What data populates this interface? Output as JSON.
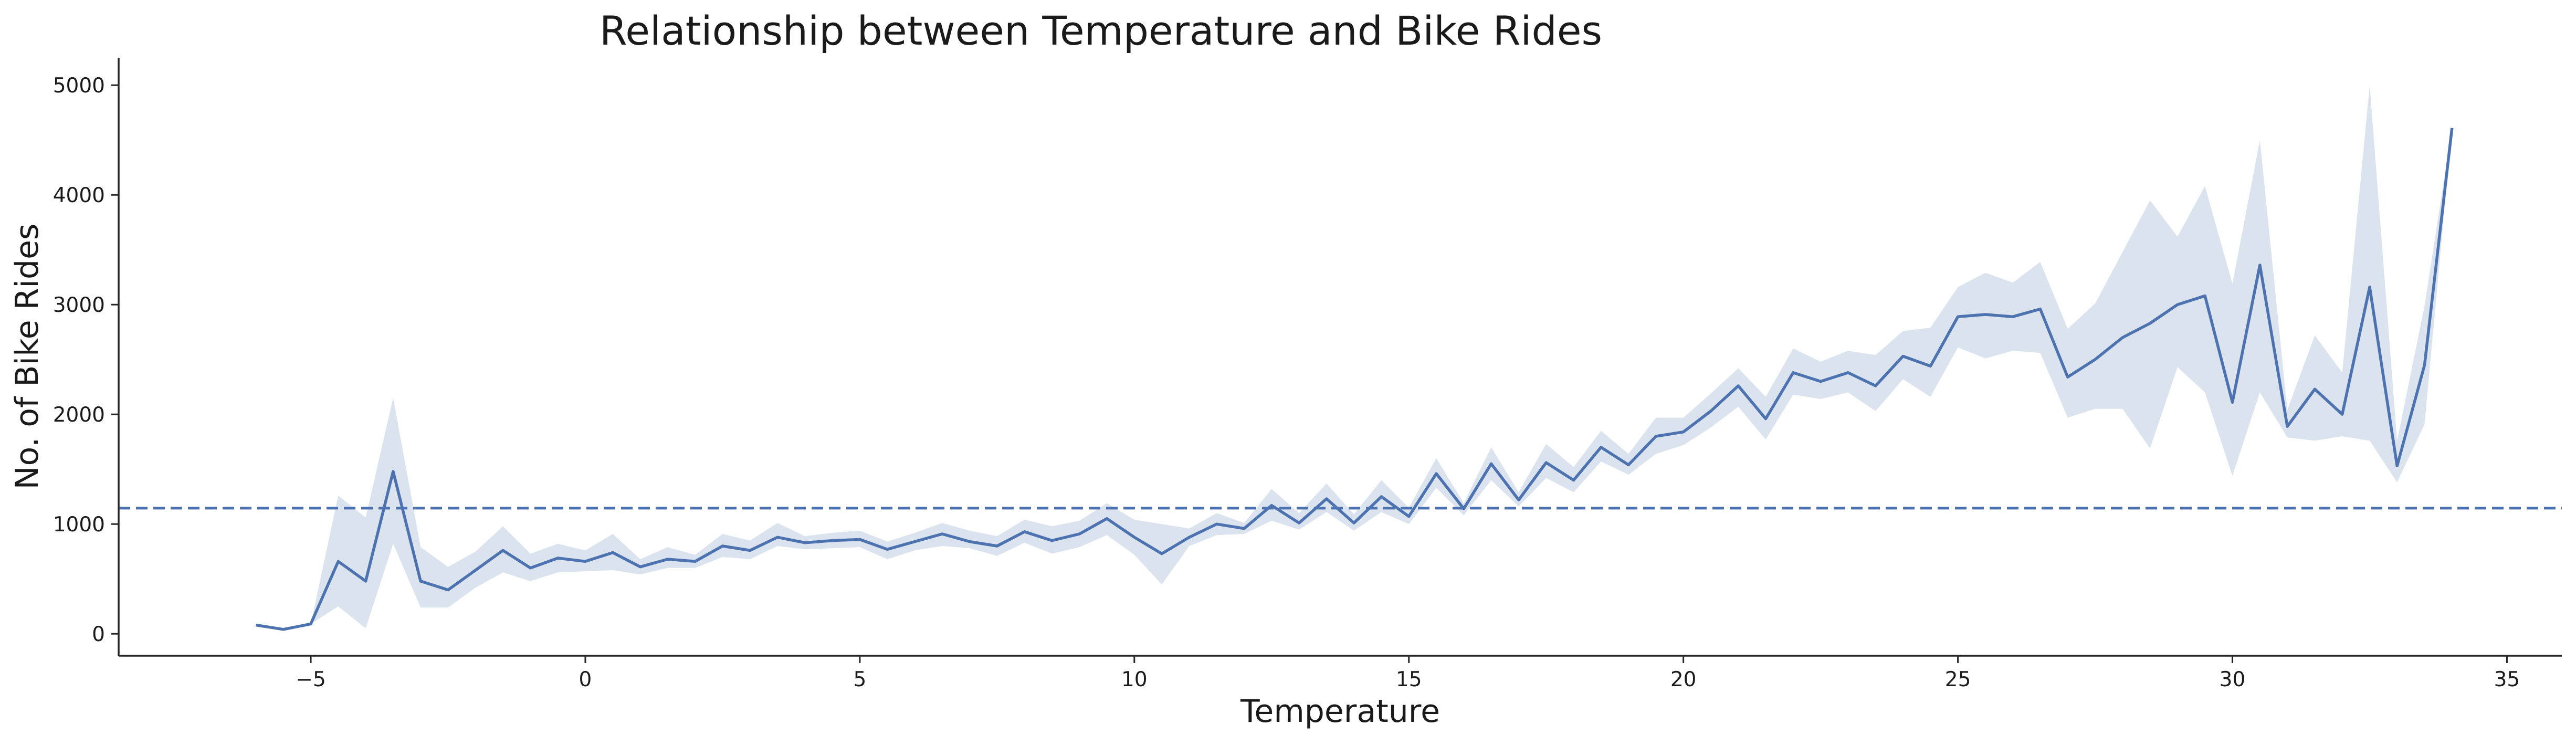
{
  "chart_data": {
    "type": "line",
    "title": "Relationship between Temperature and Bike Rides",
    "xlabel": "Temperature",
    "ylabel": "No. of Bike Rides",
    "xlim": [
      -8.5,
      36
    ],
    "ylim": [
      -200,
      5250
    ],
    "x_ticks": [
      -5,
      0,
      5,
      10,
      15,
      20,
      25,
      30,
      35
    ],
    "x_tick_labels": [
      "−5",
      "0",
      "5",
      "10",
      "15",
      "20",
      "25",
      "30",
      "35"
    ],
    "y_ticks": [
      0,
      1000,
      2000,
      3000,
      4000,
      5000
    ],
    "y_tick_labels": [
      "0",
      "1000",
      "2000",
      "3000",
      "4000",
      "5000"
    ],
    "grid": false,
    "reference_line": {
      "orientation": "horizontal",
      "value": 1145,
      "style": "dashed"
    },
    "colors": {
      "line": "#4c72b0",
      "band": "#4c72b0"
    },
    "series": [
      {
        "x": [
          -6,
          -5.5,
          -5,
          -4.5,
          -4,
          -3.5,
          -3,
          -2.5,
          -2,
          -1.5,
          -1,
          -0.5,
          0,
          0.5,
          1,
          1.5,
          2,
          2.5,
          3,
          3.5,
          4,
          4.5,
          5,
          5.5,
          6,
          6.5,
          7,
          7.5,
          8,
          8.5,
          9,
          9.5,
          10,
          10.5,
          11,
          11.5,
          12,
          12.5,
          13,
          13.5,
          14,
          14.5,
          15,
          15.5,
          16,
          16.5,
          17,
          17.5,
          18,
          18.5,
          19,
          19.5,
          20,
          20.5,
          21,
          21.5,
          22,
          22.5,
          23,
          23.5,
          24,
          24.5,
          25,
          25.5,
          26,
          26.5,
          27,
          27.5,
          28,
          28.5,
          29,
          29.5,
          30,
          30.5,
          31,
          31.5,
          32,
          32.5,
          33,
          33.5,
          34
        ],
        "y": [
          80,
          40,
          90,
          660,
          480,
          1480,
          480,
          400,
          580,
          760,
          600,
          690,
          660,
          740,
          610,
          680,
          660,
          800,
          760,
          880,
          830,
          850,
          860,
          770,
          840,
          910,
          840,
          800,
          930,
          850,
          910,
          1050,
          880,
          730,
          880,
          1000,
          960,
          1170,
          1010,
          1230,
          1010,
          1250,
          1070,
          1460,
          1140,
          1550,
          1220,
          1560,
          1400,
          1700,
          1540,
          1800,
          1840,
          2030,
          2260,
          1960,
          2380,
          2300,
          2380,
          2260,
          2530,
          2440,
          2890,
          2910,
          2890,
          2960,
          2340,
          2500,
          2700,
          2830,
          3000,
          3080,
          2110,
          3360,
          1890,
          2230,
          2000,
          3160,
          1530,
          2450,
          4610
        ],
        "lower": [
          80,
          40,
          90,
          250,
          50,
          820,
          240,
          240,
          420,
          560,
          480,
          560,
          570,
          580,
          540,
          600,
          600,
          700,
          680,
          800,
          770,
          780,
          790,
          680,
          760,
          800,
          780,
          710,
          830,
          730,
          790,
          900,
          720,
          450,
          800,
          900,
          910,
          1030,
          950,
          1110,
          940,
          1110,
          1000,
          1330,
          1080,
          1400,
          1160,
          1420,
          1290,
          1570,
          1450,
          1640,
          1720,
          1880,
          2070,
          1770,
          2180,
          2140,
          2200,
          2030,
          2320,
          2160,
          2610,
          2510,
          2580,
          2560,
          1970,
          2050,
          2050,
          1690,
          2430,
          2200,
          1440,
          2200,
          1790,
          1760,
          1800,
          1760,
          1380,
          1910,
          4610
        ],
        "upper": [
          80,
          40,
          90,
          1260,
          1060,
          2150,
          790,
          610,
          750,
          980,
          730,
          820,
          760,
          910,
          680,
          790,
          720,
          910,
          850,
          1010,
          890,
          920,
          940,
          840,
          920,
          1010,
          940,
          890,
          1040,
          980,
          1030,
          1190,
          1040,
          1000,
          960,
          1100,
          1010,
          1320,
          1100,
          1370,
          1090,
          1400,
          1150,
          1600,
          1190,
          1700,
          1290,
          1730,
          1520,
          1850,
          1640,
          1970,
          1970,
          2190,
          2420,
          2160,
          2600,
          2480,
          2580,
          2540,
          2760,
          2790,
          3160,
          3290,
          3200,
          3390,
          2780,
          3010,
          3480,
          3950,
          3620,
          4080,
          3190,
          4500,
          2040,
          2720,
          2380,
          5000,
          1760,
          2990,
          4610
        ]
      }
    ]
  }
}
